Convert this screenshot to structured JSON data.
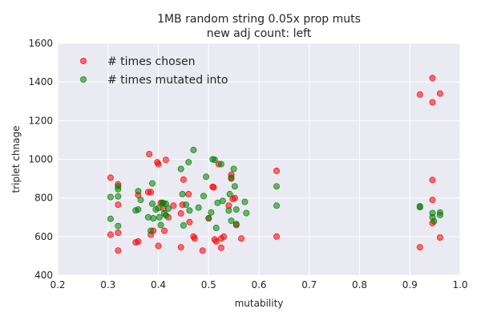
{
  "chart_data": {
    "type": "scatter",
    "title_lines": [
      "1MB random string   0.05x prop muts",
      "new adj count: left"
    ],
    "xlabel": "mutability",
    "ylabel": "triplet chnage",
    "xlim": [
      0.2,
      1.0
    ],
    "ylim": [
      400,
      1600
    ],
    "xticks": [
      0.2,
      0.3,
      0.4,
      0.5,
      0.6,
      0.7,
      0.8,
      0.9,
      1.0
    ],
    "xtick_labels": [
      "0.2",
      "0.3",
      "0.4",
      "0.5",
      "0.6",
      "0.7",
      "0.8",
      "0.9",
      "1.0"
    ],
    "yticks": [
      400,
      600,
      800,
      1000,
      1200,
      1400,
      1600
    ],
    "ytick_labels": [
      "400",
      "600",
      "800",
      "1000",
      "1200",
      "1400",
      "1600"
    ],
    "grid": true,
    "legend_position": "top-left",
    "background_color": "#eaeaf2",
    "series": [
      {
        "name": "# times chosen",
        "color": "#ff0000",
        "points": [
          [
            0.305,
            905
          ],
          [
            0.305,
            610
          ],
          [
            0.32,
            870
          ],
          [
            0.32,
            765
          ],
          [
            0.32,
            620
          ],
          [
            0.32,
            528
          ],
          [
            0.355,
            570
          ],
          [
            0.36,
            575
          ],
          [
            0.36,
            815
          ],
          [
            0.38,
            830
          ],
          [
            0.382,
            1027
          ],
          [
            0.385,
            830
          ],
          [
            0.385,
            610
          ],
          [
            0.39,
            630
          ],
          [
            0.398,
            985
          ],
          [
            0.4,
            975
          ],
          [
            0.4,
            552
          ],
          [
            0.405,
            775
          ],
          [
            0.41,
            745
          ],
          [
            0.412,
            630
          ],
          [
            0.415,
            997
          ],
          [
            0.42,
            700
          ],
          [
            0.43,
            760
          ],
          [
            0.445,
            720
          ],
          [
            0.445,
            545
          ],
          [
            0.448,
            765
          ],
          [
            0.45,
            895
          ],
          [
            0.46,
            820
          ],
          [
            0.462,
            675
          ],
          [
            0.47,
            600
          ],
          [
            0.472,
            590
          ],
          [
            0.488,
            528
          ],
          [
            0.5,
            695
          ],
          [
            0.508,
            858
          ],
          [
            0.51,
            855
          ],
          [
            0.512,
            585
          ],
          [
            0.515,
            575
          ],
          [
            0.52,
            975
          ],
          [
            0.525,
            590
          ],
          [
            0.525,
            542
          ],
          [
            0.53,
            600
          ],
          [
            0.54,
            760
          ],
          [
            0.545,
            920
          ],
          [
            0.545,
            900
          ],
          [
            0.548,
            795
          ],
          [
            0.552,
            800
          ],
          [
            0.555,
            660
          ],
          [
            0.565,
            590
          ],
          [
            0.635,
            940
          ],
          [
            0.635,
            600
          ],
          [
            0.92,
            1335
          ],
          [
            0.92,
            545
          ],
          [
            0.945,
            1420
          ],
          [
            0.945,
            1295
          ],
          [
            0.945,
            893
          ],
          [
            0.945,
            790
          ],
          [
            0.945,
            670
          ],
          [
            0.96,
            1340
          ],
          [
            0.96,
            595
          ]
        ]
      },
      {
        "name": "# times mutated into",
        "color": "#008000",
        "points": [
          [
            0.305,
            805
          ],
          [
            0.305,
            692
          ],
          [
            0.32,
            860
          ],
          [
            0.32,
            845
          ],
          [
            0.32,
            808
          ],
          [
            0.32,
            655
          ],
          [
            0.355,
            735
          ],
          [
            0.36,
            835
          ],
          [
            0.36,
            740
          ],
          [
            0.365,
            790
          ],
          [
            0.38,
            700
          ],
          [
            0.385,
            630
          ],
          [
            0.388,
            875
          ],
          [
            0.388,
            770
          ],
          [
            0.39,
            695
          ],
          [
            0.395,
            740
          ],
          [
            0.4,
            748
          ],
          [
            0.402,
            700
          ],
          [
            0.405,
            660
          ],
          [
            0.408,
            775
          ],
          [
            0.41,
            772
          ],
          [
            0.412,
            720
          ],
          [
            0.415,
            770
          ],
          [
            0.415,
            710
          ],
          [
            0.42,
            745
          ],
          [
            0.445,
            950
          ],
          [
            0.448,
            820
          ],
          [
            0.45,
            658
          ],
          [
            0.455,
            765
          ],
          [
            0.46,
            985
          ],
          [
            0.462,
            735
          ],
          [
            0.47,
            1048
          ],
          [
            0.48,
            750
          ],
          [
            0.49,
            810
          ],
          [
            0.495,
            910
          ],
          [
            0.5,
            695
          ],
          [
            0.505,
            725
          ],
          [
            0.508,
            1000
          ],
          [
            0.512,
            998
          ],
          [
            0.515,
            645
          ],
          [
            0.518,
            775
          ],
          [
            0.525,
            975
          ],
          [
            0.528,
            785
          ],
          [
            0.54,
            735
          ],
          [
            0.542,
            820
          ],
          [
            0.545,
            905
          ],
          [
            0.545,
            682
          ],
          [
            0.55,
            950
          ],
          [
            0.552,
            860
          ],
          [
            0.555,
            740
          ],
          [
            0.555,
            665
          ],
          [
            0.572,
            780
          ],
          [
            0.575,
            722
          ],
          [
            0.635,
            860
          ],
          [
            0.635,
            760
          ],
          [
            0.92,
            757
          ],
          [
            0.92,
            752
          ],
          [
            0.945,
            722
          ],
          [
            0.945,
            700
          ],
          [
            0.948,
            680
          ],
          [
            0.96,
            725
          ],
          [
            0.96,
            712
          ]
        ]
      }
    ]
  }
}
